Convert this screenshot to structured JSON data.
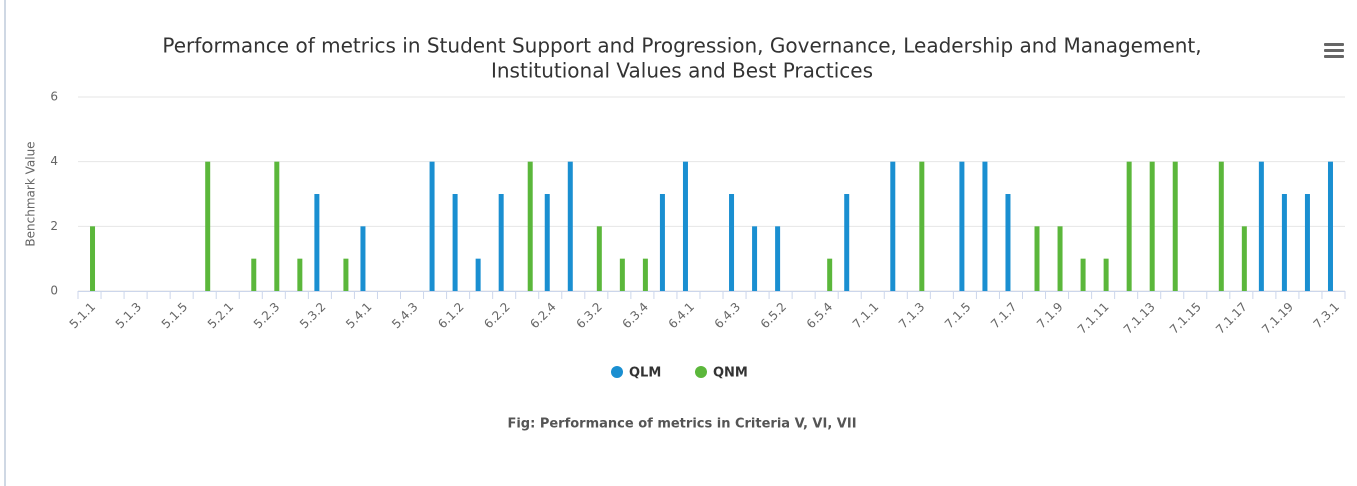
{
  "chart_data": {
    "type": "bar",
    "title": [
      "Performance of metrics in Student Support and Progression, Governance, Leadership and Management,",
      "Institutional Values and Best Practices"
    ],
    "ylabel": "Benchmark Value",
    "caption": "Fig: Performance of metrics in Criteria V, VI, VII",
    "categories": [
      "5.1.1",
      null,
      "5.1.3",
      null,
      "5.1.5",
      null,
      "5.2.1",
      null,
      "5.2.3",
      null,
      "5.3.2",
      null,
      "5.4.1",
      null,
      "5.4.3",
      null,
      "6.1.2",
      null,
      "6.2.2",
      null,
      "6.2.4",
      null,
      "6.3.2",
      null,
      "6.3.4",
      null,
      "6.4.1",
      null,
      "6.4.3",
      null,
      "6.5.2",
      null,
      "6.5.4",
      null,
      "7.1.1",
      null,
      "7.1.3",
      null,
      "7.1.5",
      null,
      "7.1.7",
      null,
      "7.1.9",
      null,
      "7.1.11",
      null,
      "7.1.13",
      null,
      "7.1.15",
      null,
      "7.1.17",
      null,
      "7.1.19",
      null,
      "7.3.1"
    ],
    "series": [
      {
        "name": "QLM",
        "color": "#1a8fd1",
        "values": [
          null,
          null,
          null,
          null,
          null,
          null,
          null,
          null,
          null,
          null,
          3,
          null,
          2,
          null,
          null,
          4,
          3,
          1,
          3,
          null,
          3,
          4,
          null,
          null,
          null,
          3,
          4,
          null,
          3,
          2,
          2,
          null,
          null,
          3,
          null,
          4,
          null,
          null,
          4,
          4,
          3,
          null,
          null,
          null,
          null,
          null,
          null,
          null,
          null,
          null,
          null,
          4,
          3,
          3,
          4
        ]
      },
      {
        "name": "QNM",
        "color": "#5bb73b",
        "values": [
          2,
          null,
          null,
          null,
          null,
          4,
          null,
          1,
          4,
          1,
          null,
          1,
          null,
          null,
          null,
          null,
          null,
          null,
          null,
          4,
          null,
          null,
          2,
          1,
          1,
          null,
          null,
          null,
          null,
          null,
          null,
          null,
          1,
          null,
          null,
          null,
          4,
          null,
          null,
          null,
          null,
          2,
          2,
          1,
          1,
          4,
          4,
          4,
          null,
          4,
          2,
          null,
          null,
          null,
          null
        ]
      }
    ],
    "ylim": [
      0,
      6
    ],
    "yticks": [
      0,
      2,
      4,
      6
    ],
    "grid": true,
    "legend": "bottom"
  }
}
